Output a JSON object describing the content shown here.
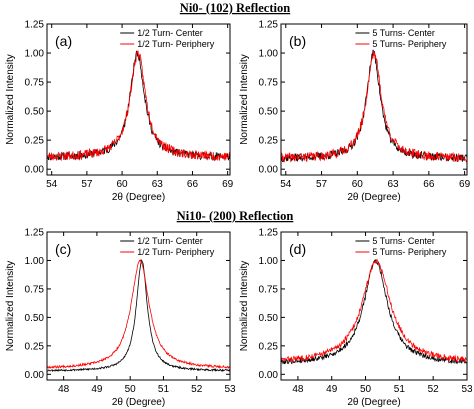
{
  "sections": [
    {
      "title": "Ni0- (102) Reflection"
    },
    {
      "title": "Ni10- (200) Reflection"
    }
  ],
  "chart_data": [
    {
      "type": "line",
      "panel_label": "(a)",
      "xlabel": "2θ (Degree)",
      "ylabel": "Normalized Intensity",
      "xlim": [
        53.6,
        69.2
      ],
      "ylim": [
        -0.05,
        1.25
      ],
      "xticks": [
        54,
        57,
        60,
        63,
        66,
        69
      ],
      "yticks": [
        0.0,
        0.25,
        0.5,
        0.75,
        1.0,
        1.25
      ],
      "xtick_labels": [
        "54",
        "57",
        "60",
        "63",
        "66",
        "69"
      ],
      "ytick_labels": [
        "0.00",
        "0.25",
        "0.50",
        "0.75",
        "1.00",
        "1.25"
      ],
      "legend_position": "top-right",
      "series": [
        {
          "name": "1/2 Turn- Center",
          "color": "#000000",
          "center": 61.3,
          "width": 0.75,
          "baseline": 0.1,
          "noise": 0.035,
          "seed": 11
        },
        {
          "name": "1/2 Turn- Periphery",
          "color": "#ff0000",
          "center": 61.35,
          "width": 0.8,
          "baseline": 0.1,
          "noise": 0.04,
          "seed": 23
        }
      ]
    },
    {
      "type": "line",
      "panel_label": "(b)",
      "xlabel": "2θ (Degree)",
      "ylabel": "Normalized Intensity",
      "xlim": [
        53.6,
        69.2
      ],
      "ylim": [
        -0.05,
        1.25
      ],
      "xticks": [
        54,
        57,
        60,
        63,
        66,
        69
      ],
      "yticks": [
        0.0,
        0.25,
        0.5,
        0.75,
        1.0,
        1.25
      ],
      "xtick_labels": [
        "54",
        "57",
        "60",
        "63",
        "66",
        "69"
      ],
      "ytick_labels": [
        "0.00",
        "0.25",
        "0.50",
        "0.75",
        "1.00",
        "1.25"
      ],
      "legend_position": "top-right",
      "series": [
        {
          "name": "5 Turns- Center",
          "color": "#000000",
          "center": 61.35,
          "width": 0.7,
          "baseline": 0.09,
          "noise": 0.035,
          "seed": 37
        },
        {
          "name": "5 Turns- Periphery",
          "color": "#ff0000",
          "center": 61.4,
          "width": 0.75,
          "baseline": 0.09,
          "noise": 0.04,
          "seed": 41
        }
      ]
    },
    {
      "type": "line",
      "panel_label": "(c)",
      "xlabel": "2θ (Degree)",
      "ylabel": "Normalized Intensity",
      "xlim": [
        47.5,
        53.0
      ],
      "ylim": [
        -0.05,
        1.25
      ],
      "xticks": [
        48,
        49,
        50,
        51,
        52,
        53
      ],
      "yticks": [
        0.0,
        0.25,
        0.5,
        0.75,
        1.0,
        1.25
      ],
      "xtick_labels": [
        "48",
        "49",
        "50",
        "51",
        "52",
        "53"
      ],
      "ytick_labels": [
        "0.00",
        "0.25",
        "0.50",
        "0.75",
        "1.00",
        "1.25"
      ],
      "legend_position": "top-right",
      "series": [
        {
          "name": "1/2 Turn- Center",
          "color": "#000000",
          "center": 50.35,
          "width": 0.2,
          "baseline": 0.03,
          "noise": 0.008,
          "seed": 53
        },
        {
          "name": "1/2 Turn- Periphery",
          "color": "#ff0000",
          "center": 50.3,
          "width": 0.33,
          "baseline": 0.05,
          "noise": 0.01,
          "seed": 67
        }
      ]
    },
    {
      "type": "line",
      "panel_label": "(d)",
      "xlabel": "2θ (Degree)",
      "ylabel": "Normalized Intensity",
      "xlim": [
        47.5,
        53.0
      ],
      "ylim": [
        -0.05,
        1.25
      ],
      "xticks": [
        48,
        49,
        50,
        51,
        52,
        53
      ],
      "yticks": [
        0.0,
        0.25,
        0.5,
        0.75,
        1.0,
        1.25
      ],
      "xtick_labels": [
        "48",
        "49",
        "50",
        "51",
        "52",
        "53"
      ],
      "ytick_labels": [
        "0.00",
        "0.25",
        "0.50",
        "0.75",
        "1.00",
        "1.25"
      ],
      "legend_position": "top-right",
      "series": [
        {
          "name": "5 Turns- Center",
          "color": "#000000",
          "center": 50.3,
          "width": 0.42,
          "baseline": 0.09,
          "noise": 0.022,
          "seed": 79
        },
        {
          "name": "5 Turns- Periphery",
          "color": "#ff0000",
          "center": 50.32,
          "width": 0.5,
          "baseline": 0.1,
          "noise": 0.025,
          "seed": 83
        }
      ]
    }
  ]
}
